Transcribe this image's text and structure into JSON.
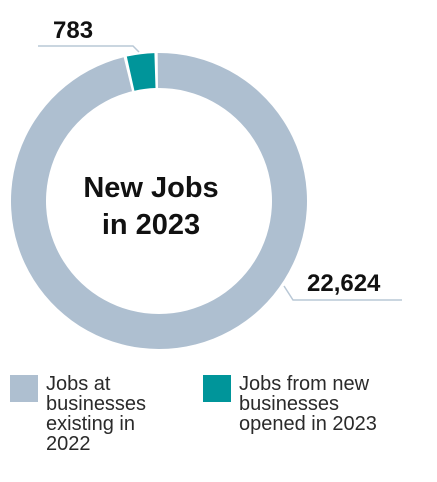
{
  "chart_data": {
    "type": "pie",
    "title": "New Jobs in 2023",
    "categories": [
      "Jobs at businesses existing in 2022",
      "Jobs from new businesses opened in 2023"
    ],
    "values": [
      22624,
      783
    ],
    "value_labels": [
      "22,624",
      "783"
    ],
    "colors": [
      "#aebfd0",
      "#00959a"
    ],
    "center_text": [
      "New Jobs",
      "in 2023"
    ],
    "legend_lines": [
      "Jobs at\nbusinesses\nexisting in\n2022",
      "Jobs from new\nbusinesses\nopened in 2023"
    ],
    "legend_position": "bottom"
  }
}
